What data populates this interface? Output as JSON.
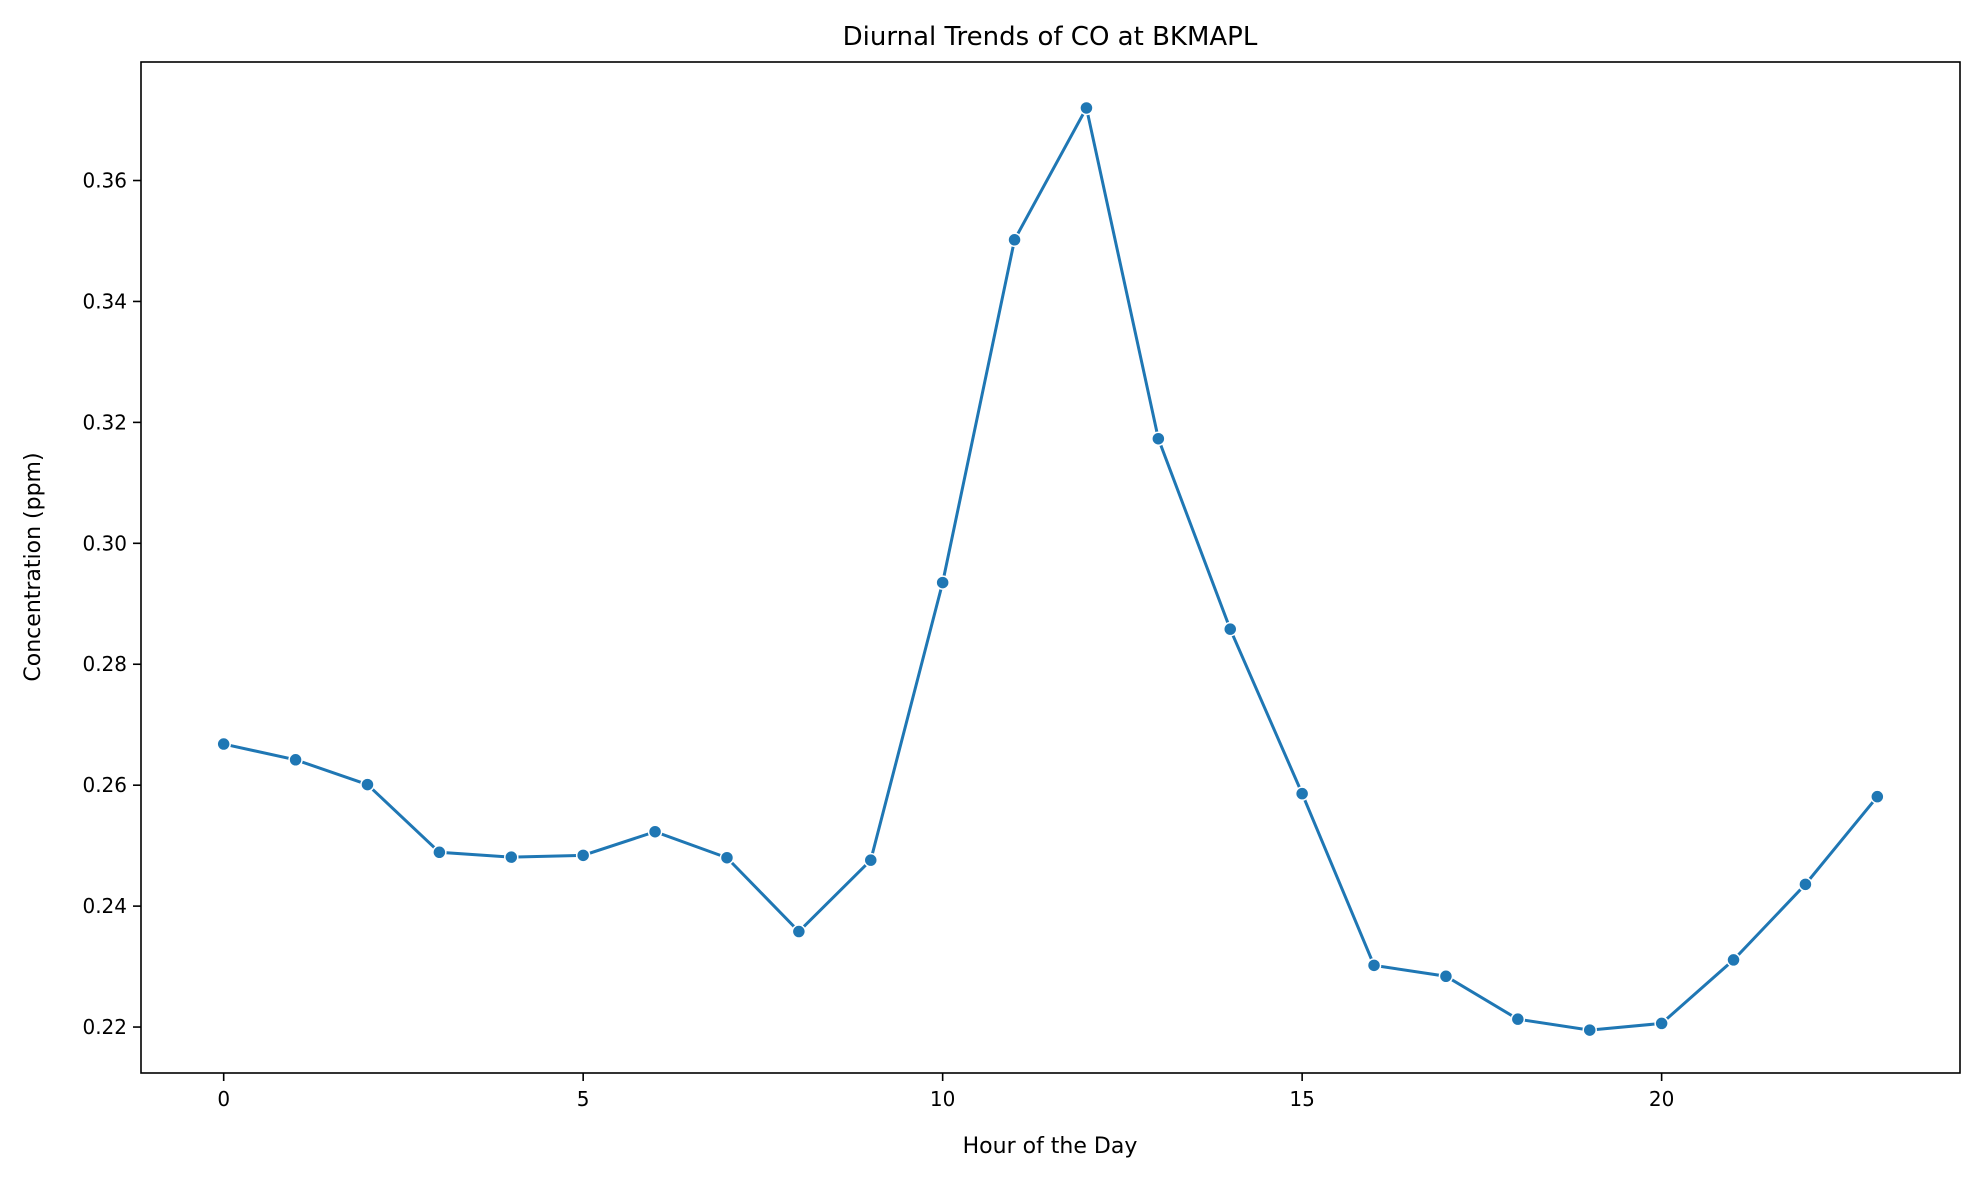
{
  "chart_data": {
    "type": "line",
    "title": "Diurnal Trends of CO at BKMAPL",
    "xlabel": "Hour of the Day",
    "ylabel": "Concentration (ppm)",
    "xlim": [
      -1.15,
      24.15
    ],
    "ylim": [
      0.2124,
      0.3796
    ],
    "xticks": [
      0,
      5,
      10,
      15,
      20
    ],
    "yticks": [
      0.22,
      0.24,
      0.26,
      0.28,
      0.3,
      0.32,
      0.34,
      0.36
    ],
    "ytick_labels": [
      "0.22",
      "0.24",
      "0.26",
      "0.28",
      "0.30",
      "0.32",
      "0.34",
      "0.36"
    ],
    "grid": false,
    "series": [
      {
        "color": "#1f77b4",
        "marker": "circle",
        "x": [
          0,
          1,
          2,
          3,
          4,
          5,
          6,
          7,
          8,
          9,
          10,
          11,
          12,
          13,
          14,
          15,
          16,
          17,
          18,
          19,
          20,
          21,
          22,
          23
        ],
        "y": [
          0.2668,
          0.2642,
          0.2601,
          0.2489,
          0.2481,
          0.2484,
          0.2523,
          0.248,
          0.2358,
          0.2476,
          0.2935,
          0.3502,
          0.372,
          0.3173,
          0.2858,
          0.2586,
          0.2302,
          0.2284,
          0.2213,
          0.2195,
          0.2206,
          0.2311,
          0.2436,
          0.2581
        ]
      }
    ]
  }
}
